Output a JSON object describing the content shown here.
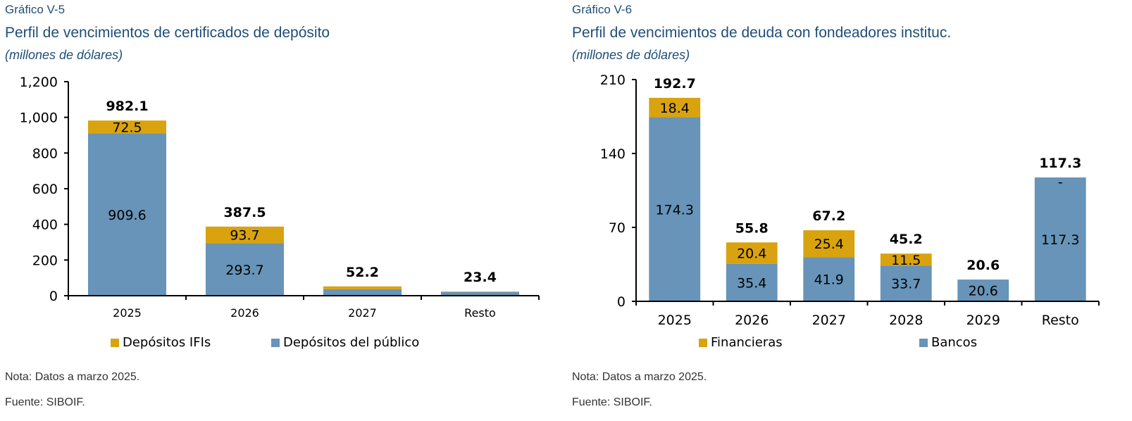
{
  "colors": {
    "title": "#1f4e79",
    "gold": "#d9a30f",
    "blue": "#6794b8",
    "axis": "#000000"
  },
  "left": {
    "figure_number": "Gráfico V-5",
    "title": "Perfil de vencimientos de certificados de depósito",
    "units": "(millones de dólares)",
    "note": "Nota: Datos a marzo 2025.",
    "source": "Fuente: SIBOIF.",
    "legend": [
      {
        "label": "Depósitos IFIs",
        "color": "#d9a30f"
      },
      {
        "label": "Depósitos del público",
        "color": "#6794b8"
      }
    ]
  },
  "right": {
    "figure_number": "Gráfico V-6",
    "title": "Perfil de vencimientos de deuda con fondeadores instituc.",
    "units": "(millones de dólares)",
    "note": "Nota: Datos a marzo 2025.",
    "source": "Fuente: SIBOIF.",
    "legend": [
      {
        "label": "Financieras",
        "color": "#d9a30f"
      },
      {
        "label": "Bancos",
        "color": "#6794b8"
      }
    ]
  },
  "chart_data": [
    {
      "type": "bar",
      "stacked": true,
      "title": "Perfil de vencimientos de certificados de depósito",
      "subtitle": "(millones de dólares)",
      "xlabel": "",
      "ylabel": "",
      "ylim": [
        0,
        1200
      ],
      "yticks": [
        0,
        200,
        400,
        600,
        800,
        1000,
        1200
      ],
      "ytick_labels": [
        "0",
        "200",
        "400",
        "600",
        "800",
        "1,000",
        "1,200"
      ],
      "categories": [
        "2025",
        "2026",
        "2027",
        "Resto"
      ],
      "series": [
        {
          "name": "Depósitos del público",
          "color": "#6794b8",
          "values": [
            909.6,
            293.7,
            36.0,
            20.4
          ],
          "labels": [
            "909.6",
            "293.7",
            "",
            ""
          ]
        },
        {
          "name": "Depósitos IFIs",
          "color": "#d9a30f",
          "values": [
            72.5,
            93.7,
            16.2,
            3.0
          ],
          "labels": [
            "72.5",
            "93.7",
            "",
            ""
          ]
        }
      ],
      "totals": [
        982.1,
        387.5,
        52.2,
        23.4
      ],
      "total_labels": [
        "982.1",
        "387.5",
        "52.2",
        "23.4"
      ],
      "grid": false,
      "legend_position": "bottom"
    },
    {
      "type": "bar",
      "stacked": true,
      "title": "Perfil de vencimientos de deuda con fondeadores instituc.",
      "subtitle": "(millones de dólares)",
      "xlabel": "",
      "ylabel": "",
      "ylim": [
        0,
        210
      ],
      "yticks": [
        0,
        70,
        140,
        210
      ],
      "ytick_labels": [
        "0",
        "70",
        "140",
        "210"
      ],
      "categories": [
        "2025",
        "2026",
        "2027",
        "2028",
        "2029",
        "Resto"
      ],
      "series": [
        {
          "name": "Bancos",
          "color": "#6794b8",
          "values": [
            174.3,
            35.4,
            41.9,
            33.7,
            20.6,
            117.3
          ],
          "labels": [
            "174.3",
            "35.4",
            "41.9",
            "33.7",
            "20.6",
            "117.3"
          ]
        },
        {
          "name": "Financieras",
          "color": "#d9a30f",
          "values": [
            18.4,
            20.4,
            25.4,
            11.5,
            0,
            0
          ],
          "labels": [
            "18.4",
            "20.4",
            "25.4",
            "11.5",
            "",
            "-"
          ]
        }
      ],
      "totals": [
        192.7,
        55.8,
        67.2,
        45.2,
        20.6,
        117.3
      ],
      "total_labels": [
        "192.7",
        "55.8",
        "67.2",
        "45.2",
        "20.6",
        "117.3"
      ],
      "grid": false,
      "legend_position": "bottom"
    }
  ]
}
